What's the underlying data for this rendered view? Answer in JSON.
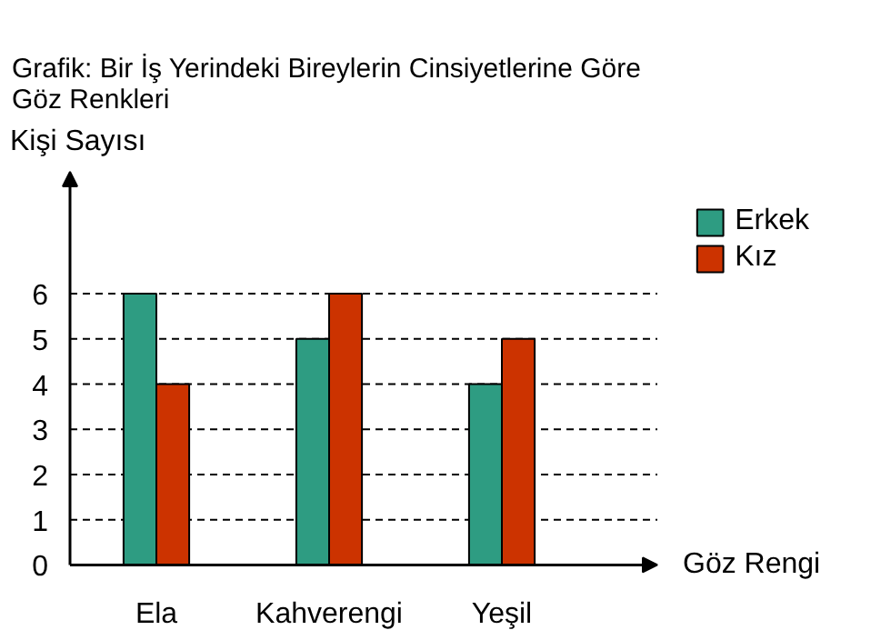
{
  "chart_data": {
    "type": "bar",
    "title": "Grafik: Bir İş Yerindeki Bireylerin Cinsiyetlerine Göre Göz Renkleri",
    "xlabel": "Göz Rengi",
    "ylabel": "Kişi Sayısı",
    "categories": [
      "Ela",
      "Kahverengi",
      "Yeşil"
    ],
    "series": [
      {
        "name": "Erkek",
        "color": "#2e9c82",
        "values": [
          6,
          5,
          4
        ]
      },
      {
        "name": "Kız",
        "color": "#cc3300",
        "values": [
          4,
          6,
          5
        ]
      }
    ],
    "ylim": [
      0,
      8.7
    ],
    "yticks": [
      0,
      1,
      2,
      3,
      4,
      5,
      6
    ],
    "grid": "y",
    "legend": "top right"
  }
}
